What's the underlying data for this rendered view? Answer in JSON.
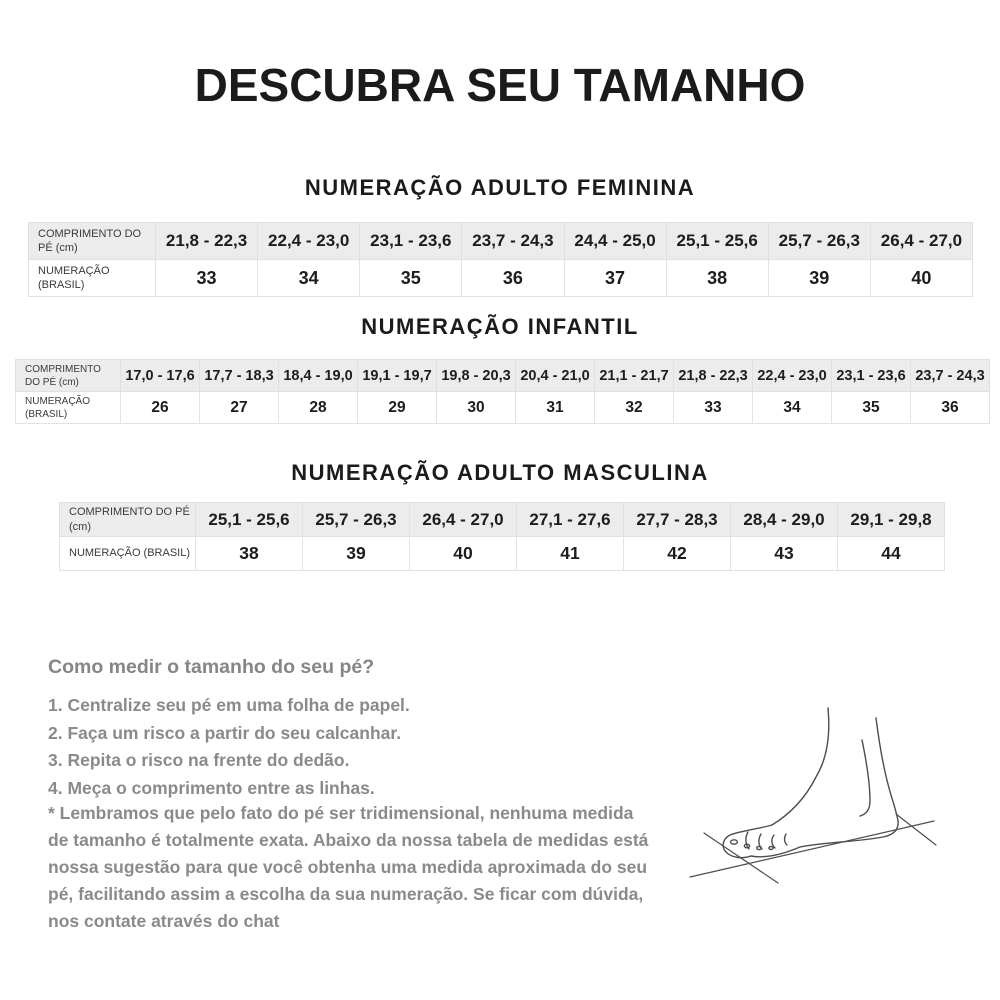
{
  "page_title": "DESCUBRA SEU TAMANHO",
  "row_labels": {
    "length": "COMPRIMENTO DO PÉ (cm)",
    "size": "NUMERAÇÃO (BRASIL)"
  },
  "size_tables": [
    {
      "section_title": "NUMERAÇÃO ADULTO FEMININA",
      "lengths_cm": [
        "21,8 - 22,3",
        "22,4 - 23,0",
        "23,1 - 23,6",
        "23,7 - 24,3",
        "24,4 - 25,0",
        "25,1 - 25,6",
        "25,7 - 26,3",
        "26,4 - 27,0"
      ],
      "sizes_br": [
        "33",
        "34",
        "35",
        "36",
        "37",
        "38",
        "39",
        "40"
      ]
    },
    {
      "section_title": "NUMERAÇÃO INFANTIL",
      "lengths_cm": [
        "17,0 - 17,6",
        "17,7 - 18,3",
        "18,4 - 19,0",
        "19,1 - 19,7",
        "19,8 - 20,3",
        "20,4 - 21,0",
        "21,1 - 21,7",
        "21,8 - 22,3",
        "22,4 - 23,0",
        "23,1 - 23,6",
        "23,7 - 24,3"
      ],
      "sizes_br": [
        "26",
        "27",
        "28",
        "29",
        "30",
        "31",
        "32",
        "33",
        "34",
        "35",
        "36"
      ]
    },
    {
      "section_title": "NUMERAÇÃO ADULTO MASCULINA",
      "lengths_cm": [
        "25,1 - 25,6",
        "25,7 - 26,3",
        "26,4 - 27,0",
        "27,1 - 27,6",
        "27,7 - 28,3",
        "28,4 - 29,0",
        "29,1 - 29,8"
      ],
      "sizes_br": [
        "38",
        "39",
        "40",
        "41",
        "42",
        "43",
        "44"
      ]
    }
  ],
  "how_to": {
    "title": "Como medir o tamanho do seu pé?",
    "steps": [
      "1. Centralize seu pé em uma folha de papel.",
      "2. Faça um risco a partir do seu calcanhar.",
      "3. Repita o risco na frente do dedão.",
      "4. Meça o comprimento entre as linhas."
    ],
    "note": "* Lembramos que pelo fato do pé ser tridimensional, nenhuma medida de tamanho é totalmente exata. Abaixo da nossa tabela de medidas está nossa sugestão para que você obtenha uma medida aproximada do seu pé, facilitando assim a escolha da sua numeração. Se ficar com dúvida, nos contate através do chat"
  },
  "illustration": {
    "name": "foot-measurement-drawing"
  },
  "colors": {
    "table_header_bg": "#ececec",
    "table_border": "#e3e3e3",
    "text_primary": "#1d1d1d",
    "text_muted": "#8a8a8a"
  }
}
